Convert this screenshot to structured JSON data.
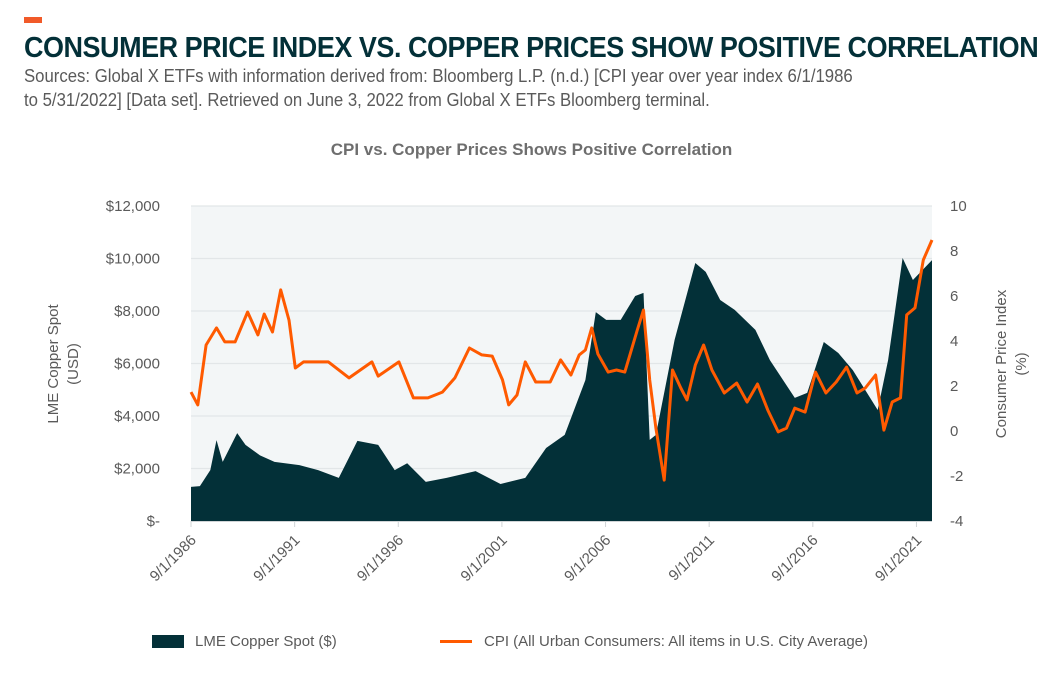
{
  "header": {
    "headline": "CONSUMER PRICE INDEX VS. COPPER PRICES SHOW POSITIVE CORRELATION",
    "source_line1": "Sources: Global X ETFs with information derived from: Bloomberg L.P. (n.d.) [CPI year over year index 6/1/1986",
    "source_line2": "to 5/31/2022] [Data set]. Retrieved on June 3, 2022 from Global X ETFs Bloomberg terminal."
  },
  "colors": {
    "accent": "#f15a29",
    "copper_area": "#033038",
    "cpi_line": "#ff5a00",
    "plot_bg": "#f3f6f7",
    "grid": "#e2e6e8"
  },
  "chart_data": {
    "type": "area+line",
    "title": "CPI vs. Copper Prices Shows Positive Correlation",
    "xlabel": "",
    "ylabel_left": "LME Copper Spot (USD)",
    "ylabel_left_lines": [
      "LME Copper Spot",
      "(USD)"
    ],
    "ylabel_right": "Consumer Price Index (%)",
    "ylabel_right_lines": [
      "Consumer Price Index",
      "(%)"
    ],
    "ylim_left": [
      0,
      12000
    ],
    "ylim_right": [
      -4,
      10
    ],
    "xlim": [
      1986.67,
      2022.42
    ],
    "grid": true,
    "legend_position": "bottom",
    "x_ticks": [
      {
        "x": 1986.67,
        "label": "9/1/1986"
      },
      {
        "x": 1991.67,
        "label": "9/1/1991"
      },
      {
        "x": 1996.67,
        "label": "9/1/1996"
      },
      {
        "x": 2001.67,
        "label": "9/1/2001"
      },
      {
        "x": 2006.67,
        "label": "9/1/2006"
      },
      {
        "x": 2011.67,
        "label": "9/1/2011"
      },
      {
        "x": 2016.67,
        "label": "9/1/2016"
      },
      {
        "x": 2021.67,
        "label": "9/1/2021"
      }
    ],
    "y_ticks_left": [
      {
        "v": 0,
        "label": "$-"
      },
      {
        "v": 2000,
        "label": "$2,000"
      },
      {
        "v": 4000,
        "label": "$4,000"
      },
      {
        "v": 6000,
        "label": "$6,000"
      },
      {
        "v": 8000,
        "label": "$8,000"
      },
      {
        "v": 10000,
        "label": "$10,000"
      },
      {
        "v": 12000,
        "label": "$12,000"
      }
    ],
    "y_ticks_right": [
      {
        "v": -4,
        "label": "-4"
      },
      {
        "v": -2,
        "label": "-2"
      },
      {
        "v": 0,
        "label": "0"
      },
      {
        "v": 2,
        "label": "2"
      },
      {
        "v": 4,
        "label": "4"
      },
      {
        "v": 6,
        "label": "6"
      },
      {
        "v": 8,
        "label": "8"
      },
      {
        "v": 10,
        "label": "10"
      }
    ],
    "series": [
      {
        "name": "LME Copper Spot ($)",
        "type": "area",
        "axis": "left",
        "x": [
          1986.67,
          1987.1,
          1987.6,
          1987.9,
          1988.2,
          1988.9,
          1989.3,
          1990.0,
          1990.7,
          1991.9,
          1992.8,
          1993.8,
          1994.7,
          1995.7,
          1996.5,
          1997.1,
          1998.0,
          1999.0,
          2000.4,
          2001.6,
          2002.8,
          2003.8,
          2004.7,
          2005.7,
          2006.2,
          2006.7,
          2007.4,
          2008.1,
          2008.5,
          2008.8,
          2009.1,
          2010.0,
          2011.0,
          2011.5,
          2012.2,
          2012.9,
          2013.9,
          2014.6,
          2015.8,
          2016.4,
          2017.2,
          2017.9,
          2018.6,
          2019.8,
          2020.3,
          2021.0,
          2021.5,
          2022.42
        ],
        "values": [
          1300,
          1330,
          1940,
          3080,
          2250,
          3350,
          2900,
          2500,
          2250,
          2130,
          1940,
          1640,
          3050,
          2900,
          1940,
          2200,
          1490,
          1640,
          1900,
          1410,
          1640,
          2780,
          3280,
          5370,
          7960,
          7660,
          7660,
          8570,
          8690,
          3090,
          3280,
          6900,
          9830,
          9490,
          8420,
          8040,
          7280,
          6130,
          4690,
          4880,
          6820,
          6400,
          5750,
          4230,
          6130,
          10020,
          9180,
          9940
        ]
      },
      {
        "name": "CPI (All Urban Consumers: All items in U.S. City Average)",
        "type": "line",
        "axis": "right",
        "x": [
          1986.67,
          1987.0,
          1987.4,
          1987.9,
          1988.3,
          1988.8,
          1989.4,
          1989.9,
          1990.2,
          1990.6,
          1991.0,
          1991.4,
          1991.7,
          1992.1,
          1993.3,
          1994.3,
          1995.4,
          1995.7,
          1996.7,
          1997.4,
          1998.1,
          1998.8,
          1999.4,
          2000.1,
          2000.7,
          2001.2,
          2001.7,
          2002.0,
          2002.4,
          2002.8,
          2003.3,
          2004.0,
          2004.5,
          2005.0,
          2005.4,
          2005.7,
          2006.0,
          2006.3,
          2006.8,
          2007.2,
          2007.6,
          2008.2,
          2008.5,
          2008.8,
          2009.1,
          2009.5,
          2009.9,
          2010.3,
          2010.6,
          2011.0,
          2011.4,
          2011.8,
          2012.4,
          2013.0,
          2013.5,
          2014.0,
          2014.5,
          2015.0,
          2015.4,
          2015.8,
          2016.3,
          2016.8,
          2017.3,
          2017.8,
          2018.3,
          2018.8,
          2019.2,
          2019.7,
          2020.1,
          2020.5,
          2020.9,
          2021.2,
          2021.6,
          2022.0,
          2022.42
        ],
        "values": [
          1.73,
          1.16,
          3.82,
          4.58,
          3.96,
          3.96,
          5.29,
          4.27,
          5.2,
          4.4,
          6.27,
          4.93,
          2.8,
          3.07,
          3.07,
          2.36,
          3.07,
          2.44,
          3.07,
          1.47,
          1.47,
          1.73,
          2.36,
          3.69,
          3.38,
          3.33,
          2.27,
          1.16,
          1.6,
          3.07,
          2.18,
          2.18,
          3.16,
          2.49,
          3.38,
          3.6,
          4.58,
          3.42,
          2.62,
          2.71,
          2.62,
          4.49,
          5.38,
          2.27,
          0.13,
          -2.18,
          2.71,
          1.91,
          1.38,
          2.93,
          3.82,
          2.71,
          1.69,
          2.13,
          1.29,
          2.09,
          0.93,
          -0.04,
          0.13,
          1.02,
          0.84,
          2.62,
          1.69,
          2.18,
          2.84,
          1.69,
          1.91,
          2.49,
          0.04,
          1.29,
          1.47,
          5.16,
          5.47,
          7.6,
          8.49
        ]
      }
    ]
  },
  "legend": {
    "items": [
      {
        "label": "LME Copper Spot ($)",
        "kind": "area"
      },
      {
        "label": "CPI (All Urban Consumers: All items in U.S. City Average)",
        "kind": "line"
      }
    ]
  }
}
